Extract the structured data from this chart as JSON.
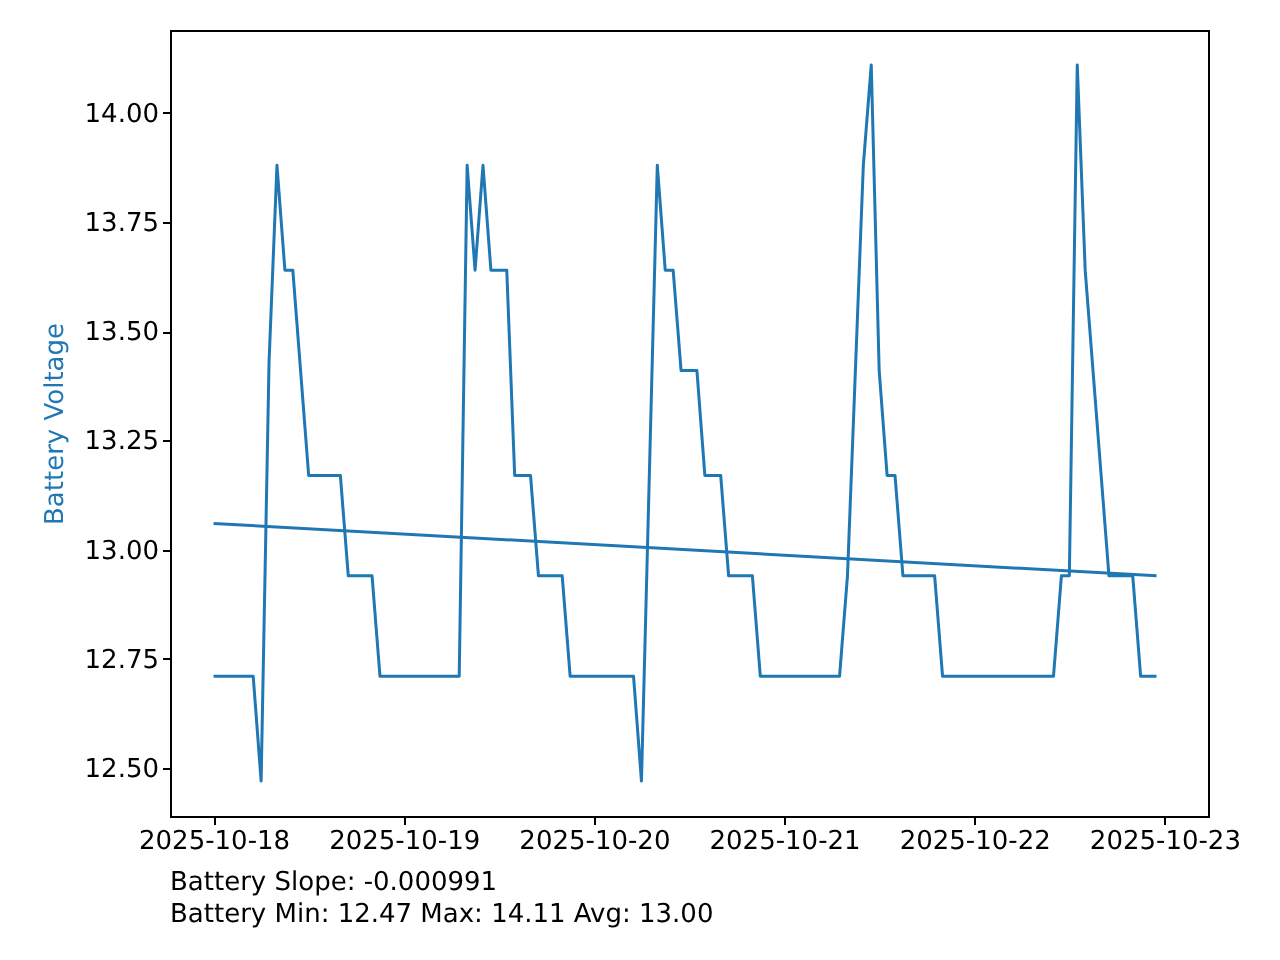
{
  "chart_data": {
    "type": "line",
    "ylabel": "Battery Voltage",
    "annotations": [
      "Battery Slope: -0.000991",
      "Battery Min: 12.47 Max: 14.11 Avg: 13.00"
    ],
    "xlim": [
      "2025-10-17T18:30",
      "2025-10-23T05:30"
    ],
    "ylim": [
      12.39,
      14.19
    ],
    "xticks": [
      "2025-10-18",
      "2025-10-19",
      "2025-10-20",
      "2025-10-21",
      "2025-10-22",
      "2025-10-23"
    ],
    "yticks": [
      {
        "value": 12.5,
        "label": "12.50"
      },
      {
        "value": 12.75,
        "label": "12.75"
      },
      {
        "value": 13,
        "label": "13.00"
      },
      {
        "value": 13.25,
        "label": "13.25"
      },
      {
        "value": 13.5,
        "label": "13.50"
      },
      {
        "value": 13.75,
        "label": "13.75"
      },
      {
        "value": 14,
        "label": "14.00"
      }
    ],
    "series": [
      {
        "color": "#1f77b4",
        "x": [
          "2025-10-18T00:00",
          "2025-10-18T05:00",
          "2025-10-18T06:00",
          "2025-10-18T07:00",
          "2025-10-18T08:00",
          "2025-10-18T09:00",
          "2025-10-18T10:00",
          "2025-10-18T12:00",
          "2025-10-18T16:00",
          "2025-10-18T17:00",
          "2025-10-18T20:00",
          "2025-10-18T21:00",
          "2025-10-19T07:00",
          "2025-10-19T08:00",
          "2025-10-19T09:00",
          "2025-10-19T10:00",
          "2025-10-19T11:00",
          "2025-10-19T13:00",
          "2025-10-19T14:00",
          "2025-10-19T16:00",
          "2025-10-19T17:00",
          "2025-10-19T20:00",
          "2025-10-19T21:00",
          "2025-10-20T05:00",
          "2025-10-20T06:00",
          "2025-10-20T08:00",
          "2025-10-20T09:00",
          "2025-10-20T10:00",
          "2025-10-20T11:00",
          "2025-10-20T13:00",
          "2025-10-20T14:00",
          "2025-10-20T16:00",
          "2025-10-20T17:00",
          "2025-10-20T20:00",
          "2025-10-20T21:00",
          "2025-10-21T07:00",
          "2025-10-21T08:00",
          "2025-10-21T10:00",
          "2025-10-21T11:00",
          "2025-10-21T12:00",
          "2025-10-21T13:00",
          "2025-10-21T14:00",
          "2025-10-21T15:00",
          "2025-10-21T19:00",
          "2025-10-21T20:00",
          "2025-10-22T10:00",
          "2025-10-22T11:00",
          "2025-10-22T12:00",
          "2025-10-22T13:00",
          "2025-10-22T14:00",
          "2025-10-22T17:00",
          "2025-10-22T20:00",
          "2025-10-22T21:00",
          "2025-10-22T23:00"
        ],
        "values": [
          12.71,
          12.71,
          12.47,
          13.43,
          13.88,
          13.64,
          13.64,
          13.17,
          13.17,
          12.94,
          12.94,
          12.71,
          12.71,
          13.88,
          13.64,
          13.88,
          13.64,
          13.64,
          13.17,
          13.17,
          12.94,
          12.94,
          12.71,
          12.71,
          12.47,
          13.88,
          13.64,
          13.64,
          13.41,
          13.41,
          13.17,
          13.17,
          12.94,
          12.94,
          12.71,
          12.71,
          12.94,
          13.88,
          14.11,
          13.41,
          13.17,
          13.17,
          12.94,
          12.94,
          12.71,
          12.71,
          12.94,
          12.94,
          14.11,
          13.64,
          12.94,
          12.94,
          12.71,
          12.71
        ]
      },
      {
        "type": "line",
        "color": "#1f77b4",
        "x": [
          "2025-10-18T00:00",
          "2025-10-22T23:00"
        ],
        "values": [
          13.06,
          12.94
        ]
      }
    ]
  }
}
